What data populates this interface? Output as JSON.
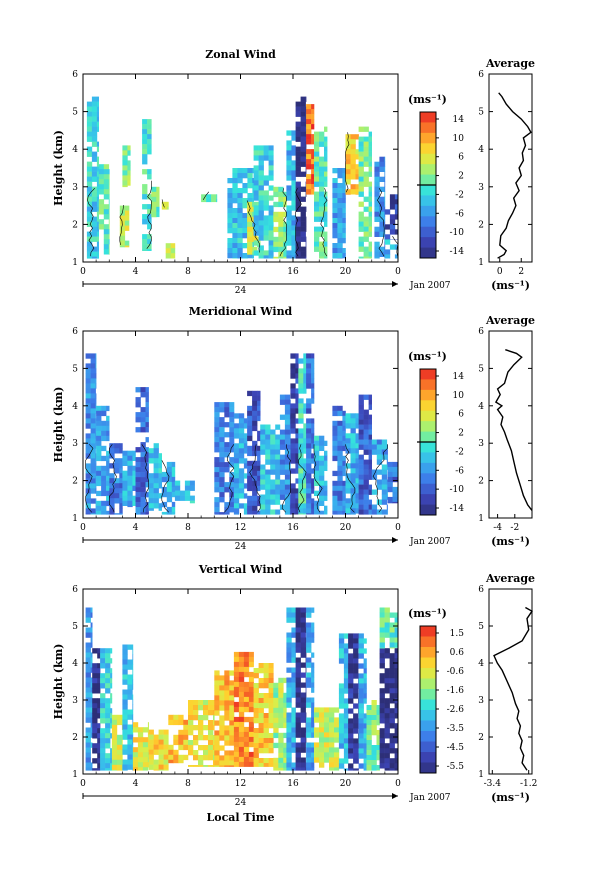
{
  "figure": {
    "date_label": "Jan 2007",
    "xlabel": "Local Time",
    "day_label": "24"
  },
  "chart_data": [
    {
      "type": "heatmap",
      "title": "Zonal Wind",
      "ylabel": "Height (km)",
      "xlim": [
        0,
        24
      ],
      "ylim": [
        1,
        6
      ],
      "xticks": [
        "0",
        "4",
        "8",
        "12",
        "16",
        "20",
        "0"
      ],
      "yticks": [
        "1",
        "2",
        "3",
        "4",
        "5",
        "6"
      ],
      "colorbar": {
        "unit": "(ms⁻¹)",
        "ticks": [
          "14",
          "10",
          "6",
          "2",
          "-2",
          "-6",
          "-10",
          "-14"
        ],
        "min": -14,
        "max": 14,
        "zero_line": 0
      },
      "columns": [
        {
          "x0": 0.3,
          "x1": 1.2,
          "bot": 1.1,
          "top": 5.4,
          "v": -2
        },
        {
          "x0": 1.2,
          "x1": 2.0,
          "bot": 1.2,
          "top": 3.6,
          "v": 0
        },
        {
          "x0": 2.8,
          "x1": 3.5,
          "bot": 1.4,
          "top": 2.5,
          "v": 4
        },
        {
          "x0": 3.0,
          "x1": 3.6,
          "bot": 3.0,
          "top": 4.1,
          "v": 2
        },
        {
          "x0": 4.5,
          "x1": 5.2,
          "bot": 1.3,
          "top": 4.8,
          "v": -1
        },
        {
          "x0": 5.2,
          "x1": 5.8,
          "bot": 2.2,
          "top": 3.0,
          "v": 1
        },
        {
          "x0": 6.0,
          "x1": 6.5,
          "bot": 2.4,
          "top": 2.6,
          "v": 3
        },
        {
          "x0": 6.3,
          "x1": 7.0,
          "bot": 1.1,
          "top": 1.5,
          "v": 4
        },
        {
          "x0": 9.0,
          "x1": 10.2,
          "bot": 2.6,
          "top": 2.8,
          "v": 1
        },
        {
          "x0": 11.0,
          "x1": 13.0,
          "bot": 1.1,
          "top": 3.5,
          "v": -3
        },
        {
          "x0": 12.5,
          "x1": 13.5,
          "bot": 1.2,
          "top": 2.6,
          "v": 4
        },
        {
          "x0": 13.0,
          "x1": 14.5,
          "bot": 1.1,
          "top": 4.1,
          "v": -2
        },
        {
          "x0": 14.5,
          "x1": 15.5,
          "bot": 1.1,
          "top": 3.0,
          "v": 2
        },
        {
          "x0": 15.5,
          "x1": 16.2,
          "bot": 1.1,
          "top": 4.5,
          "v": -4
        },
        {
          "x0": 16.2,
          "x1": 17.0,
          "bot": 1.1,
          "top": 5.4,
          "v": -14
        },
        {
          "x0": 17.0,
          "x1": 17.6,
          "bot": 2.8,
          "top": 5.2,
          "v": 11
        },
        {
          "x0": 17.6,
          "x1": 18.6,
          "bot": 1.1,
          "top": 4.6,
          "v": 0
        },
        {
          "x0": 19.0,
          "x1": 20.0,
          "bot": 1.1,
          "top": 3.5,
          "v": -5
        },
        {
          "x0": 20.0,
          "x1": 21.0,
          "bot": 2.8,
          "top": 4.4,
          "v": 7
        },
        {
          "x0": 21.0,
          "x1": 22.0,
          "bot": 1.1,
          "top": 4.6,
          "v": 1
        },
        {
          "x0": 22.2,
          "x1": 23.0,
          "bot": 1.1,
          "top": 3.8,
          "v": -6
        },
        {
          "x0": 23.0,
          "x1": 24.0,
          "bot": 1.6,
          "top": 2.8,
          "v": -11
        },
        {
          "x0": 23.0,
          "x1": 24.0,
          "bot": 1.1,
          "top": 1.6,
          "v": -4
        }
      ],
      "profile": {
        "title": "Average",
        "xlabel": "(ms⁻¹)",
        "xlim": [
          -1,
          3
        ],
        "xticks": [
          {
            "v": 0,
            "label": "0"
          },
          {
            "v": 2,
            "label": "2"
          }
        ],
        "yticks": [
          "1",
          "2",
          "3",
          "4",
          "5",
          "6"
        ],
        "points": [
          [
            -0.2,
            1.1
          ],
          [
            0.4,
            1.2
          ],
          [
            0.6,
            1.3
          ],
          [
            0,
            1.45
          ],
          [
            0.1,
            1.7
          ],
          [
            0.6,
            1.9
          ],
          [
            0.8,
            2.1
          ],
          [
            1.2,
            2.3
          ],
          [
            1.5,
            2.5
          ],
          [
            1.3,
            2.7
          ],
          [
            1.8,
            2.9
          ],
          [
            1.5,
            3.1
          ],
          [
            2.0,
            3.3
          ],
          [
            1.8,
            3.5
          ],
          [
            2.2,
            3.7
          ],
          [
            2.1,
            3.9
          ],
          [
            2.4,
            4.1
          ],
          [
            2.2,
            4.3
          ],
          [
            2.9,
            4.45
          ],
          [
            2.6,
            4.6
          ],
          [
            2.0,
            4.8
          ],
          [
            1.2,
            5.0
          ],
          [
            0.6,
            5.2
          ],
          [
            0.2,
            5.4
          ],
          [
            -0.1,
            5.5
          ]
        ]
      }
    },
    {
      "type": "heatmap",
      "title": "Meridional Wind",
      "ylabel": "Height (km)",
      "xlim": [
        0,
        24
      ],
      "ylim": [
        1,
        6
      ],
      "xticks": [
        "0",
        "4",
        "8",
        "12",
        "16",
        "20",
        "0"
      ],
      "yticks": [
        "1",
        "2",
        "3",
        "4",
        "5",
        "6"
      ],
      "colorbar": {
        "unit": "(ms⁻¹)",
        "ticks": [
          "14",
          "10",
          "6",
          "2",
          "-2",
          "-6",
          "-10",
          "-14"
        ],
        "min": -14,
        "max": 14,
        "zero_line": 0
      },
      "columns": [
        {
          "x0": 0.2,
          "x1": 1.0,
          "bot": 1.1,
          "top": 5.4,
          "v": -6
        },
        {
          "x0": 1.0,
          "x1": 2.0,
          "bot": 1.1,
          "top": 4.0,
          "v": -5
        },
        {
          "x0": 2.0,
          "x1": 3.0,
          "bot": 1.1,
          "top": 3.0,
          "v": -7
        },
        {
          "x0": 3.0,
          "x1": 4.0,
          "bot": 1.3,
          "top": 2.8,
          "v": -4
        },
        {
          "x0": 4.0,
          "x1": 5.0,
          "bot": 1.1,
          "top": 4.5,
          "v": -8
        },
        {
          "x0": 5.0,
          "x1": 6.0,
          "bot": 1.2,
          "top": 3.0,
          "v": -3
        },
        {
          "x0": 6.0,
          "x1": 7.0,
          "bot": 1.1,
          "top": 2.5,
          "v": -4
        },
        {
          "x0": 7.0,
          "x1": 8.5,
          "bot": 1.4,
          "top": 2.0,
          "v": -3
        },
        {
          "x0": 10.0,
          "x1": 11.5,
          "bot": 1.1,
          "top": 4.1,
          "v": -7
        },
        {
          "x0": 11.5,
          "x1": 12.5,
          "bot": 1.1,
          "top": 3.8,
          "v": -4
        },
        {
          "x0": 12.5,
          "x1": 13.5,
          "bot": 1.1,
          "top": 4.4,
          "v": -10
        },
        {
          "x0": 13.5,
          "x1": 15.0,
          "bot": 1.1,
          "top": 3.5,
          "v": -3
        },
        {
          "x0": 15.0,
          "x1": 15.8,
          "bot": 1.1,
          "top": 4.3,
          "v": -6
        },
        {
          "x0": 15.8,
          "x1": 16.4,
          "bot": 1.1,
          "top": 5.4,
          "v": -11
        },
        {
          "x0": 16.4,
          "x1": 17.0,
          "bot": 1.1,
          "top": 5.4,
          "v": -1
        },
        {
          "x0": 17.0,
          "x1": 17.6,
          "bot": 1.1,
          "top": 5.4,
          "v": -8
        },
        {
          "x0": 17.6,
          "x1": 18.6,
          "bot": 1.1,
          "top": 3.2,
          "v": -3
        },
        {
          "x0": 19.0,
          "x1": 20.0,
          "bot": 1.1,
          "top": 4.0,
          "v": -7
        },
        {
          "x0": 20.0,
          "x1": 21.0,
          "bot": 1.1,
          "top": 3.8,
          "v": -4
        },
        {
          "x0": 21.0,
          "x1": 22.0,
          "bot": 1.1,
          "top": 4.3,
          "v": -9
        },
        {
          "x0": 22.0,
          "x1": 23.2,
          "bot": 1.1,
          "top": 3.1,
          "v": -5
        },
        {
          "x0": 23.2,
          "x1": 24.0,
          "bot": 1.4,
          "top": 2.5,
          "v": -8
        }
      ],
      "profile": {
        "title": "Average",
        "xlabel": "(ms⁻¹)",
        "xlim": [
          -5,
          0
        ],
        "xticks": [
          {
            "v": -4,
            "label": "-4"
          },
          {
            "v": -2,
            "label": "-2"
          }
        ],
        "yticks": [
          "1",
          "2",
          "3",
          "4",
          "5",
          "6"
        ],
        "points": [
          [
            0,
            1.2
          ],
          [
            -0.5,
            1.35
          ],
          [
            -1.0,
            1.6
          ],
          [
            -1.4,
            1.9
          ],
          [
            -1.8,
            2.2
          ],
          [
            -2.1,
            2.5
          ],
          [
            -2.4,
            2.8
          ],
          [
            -2.9,
            3.1
          ],
          [
            -3.2,
            3.3
          ],
          [
            -3.6,
            3.5
          ],
          [
            -3.4,
            3.7
          ],
          [
            -4.0,
            3.9
          ],
          [
            -3.5,
            4.0
          ],
          [
            -4.2,
            4.1
          ],
          [
            -3.7,
            4.3
          ],
          [
            -4.0,
            4.45
          ],
          [
            -3.2,
            4.6
          ],
          [
            -2.8,
            4.9
          ],
          [
            -2.1,
            5.1
          ],
          [
            -1.2,
            5.3
          ],
          [
            -1.8,
            5.4
          ],
          [
            -3.1,
            5.5
          ]
        ]
      }
    },
    {
      "type": "heatmap",
      "title": "Vertical Wind",
      "ylabel": "Height (km)",
      "xlim": [
        0,
        24
      ],
      "ylim": [
        1,
        6
      ],
      "xticks": [
        "0",
        "4",
        "8",
        "12",
        "16",
        "20",
        "0"
      ],
      "yticks": [
        "1",
        "2",
        "3",
        "4",
        "5",
        "6"
      ],
      "colorbar": {
        "unit": "(ms⁻¹)",
        "ticks": [
          "1.5",
          "0.6",
          "-0.6",
          "-1.6",
          "-2.6",
          "-3.5",
          "-4.5",
          "-5.5"
        ],
        "min": -6,
        "max": 2,
        "zero_line": null
      },
      "columns": [
        {
          "x0": 0.2,
          "x1": 0.7,
          "bot": 1.1,
          "top": 5.5,
          "v": -3.5
        },
        {
          "x0": 0.7,
          "x1": 1.3,
          "bot": 1.1,
          "top": 4.4,
          "v": -5.8
        },
        {
          "x0": 1.3,
          "x1": 2.2,
          "bot": 1.1,
          "top": 4.4,
          "v": -2.6
        },
        {
          "x0": 2.2,
          "x1": 3.0,
          "bot": 1.1,
          "top": 2.6,
          "v": -0.8
        },
        {
          "x0": 3.0,
          "x1": 3.8,
          "bot": 1.1,
          "top": 4.5,
          "v": -3.0
        },
        {
          "x0": 3.8,
          "x1": 5.0,
          "bot": 1.1,
          "top": 2.4,
          "v": -0.5
        },
        {
          "x0": 5.0,
          "x1": 6.5,
          "bot": 1.1,
          "top": 2.2,
          "v": -0.2
        },
        {
          "x0": 6.5,
          "x1": 8.0,
          "bot": 1.3,
          "top": 2.6,
          "v": 0.3
        },
        {
          "x0": 8.0,
          "x1": 10.0,
          "bot": 1.2,
          "top": 3.0,
          "v": -0.4
        },
        {
          "x0": 10.0,
          "x1": 11.5,
          "bot": 1.2,
          "top": 3.8,
          "v": 0.2
        },
        {
          "x0": 11.5,
          "x1": 13.0,
          "bot": 1.2,
          "top": 4.3,
          "v": 0.9
        },
        {
          "x0": 13.0,
          "x1": 14.5,
          "bot": 1.2,
          "top": 4.0,
          "v": 0.0
        },
        {
          "x0": 14.5,
          "x1": 15.5,
          "bot": 1.1,
          "top": 3.6,
          "v": -1.2
        },
        {
          "x0": 15.5,
          "x1": 16.2,
          "bot": 1.1,
          "top": 5.5,
          "v": -3.2
        },
        {
          "x0": 16.2,
          "x1": 17.0,
          "bot": 1.1,
          "top": 5.5,
          "v": -5.8
        },
        {
          "x0": 17.0,
          "x1": 17.6,
          "bot": 1.1,
          "top": 5.5,
          "v": -3.4
        },
        {
          "x0": 17.6,
          "x1": 19.5,
          "bot": 1.1,
          "top": 2.8,
          "v": -0.8
        },
        {
          "x0": 19.5,
          "x1": 20.2,
          "bot": 1.1,
          "top": 4.8,
          "v": -3.0
        },
        {
          "x0": 20.2,
          "x1": 21.0,
          "bot": 1.1,
          "top": 4.8,
          "v": -5.6
        },
        {
          "x0": 21.0,
          "x1": 21.6,
          "bot": 1.1,
          "top": 4.8,
          "v": -3.2
        },
        {
          "x0": 21.6,
          "x1": 22.6,
          "bot": 1.1,
          "top": 3.0,
          "v": -1.6
        },
        {
          "x0": 22.6,
          "x1": 24.0,
          "bot": 1.1,
          "top": 4.4,
          "v": -6.0
        },
        {
          "x0": 22.6,
          "x1": 24.0,
          "bot": 4.4,
          "top": 5.5,
          "v": -2.0
        }
      ],
      "profile": {
        "title": "Average",
        "xlabel": "(ms⁻¹)",
        "xlim": [
          -3.6,
          -1.0
        ],
        "xticks": [
          {
            "v": -3.4,
            "label": "-3.4"
          },
          {
            "v": -1.2,
            "label": "-1.2"
          }
        ],
        "yticks": [
          "1",
          "2",
          "3",
          "4",
          "5",
          "6"
        ],
        "points": [
          [
            -1.3,
            1.1
          ],
          [
            -1.6,
            1.3
          ],
          [
            -1.5,
            1.5
          ],
          [
            -1.7,
            1.7
          ],
          [
            -1.6,
            1.9
          ],
          [
            -1.8,
            2.1
          ],
          [
            -1.7,
            2.3
          ],
          [
            -1.9,
            2.5
          ],
          [
            -1.8,
            2.7
          ],
          [
            -2.0,
            2.9
          ],
          [
            -2.2,
            3.2
          ],
          [
            -2.5,
            3.5
          ],
          [
            -2.8,
            3.8
          ],
          [
            -3.1,
            4.0
          ],
          [
            -3.3,
            4.2
          ],
          [
            -2.4,
            4.4
          ],
          [
            -1.6,
            4.6
          ],
          [
            -1.2,
            4.9
          ],
          [
            -1.3,
            5.2
          ],
          [
            -1.0,
            5.4
          ],
          [
            -1.4,
            5.5
          ]
        ]
      }
    }
  ]
}
